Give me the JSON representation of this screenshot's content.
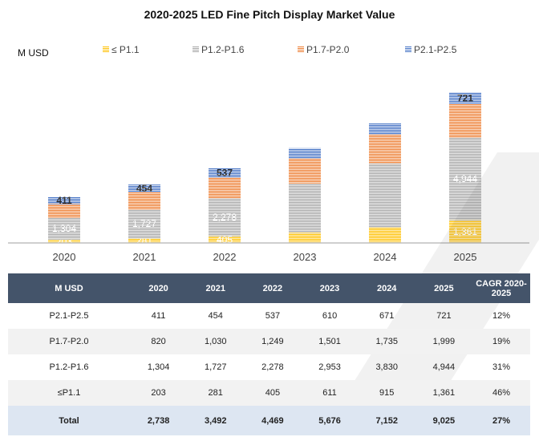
{
  "title": "2020-2025 LED Fine Pitch Display Market Value",
  "unit_label": "M USD",
  "colors": {
    "le_p11": "#ffc000",
    "p12_p16": "#a6a6a6",
    "p17_p20": "#ed7d31",
    "p21_p25": "#4472c4",
    "header_bg": "#44546a",
    "total_bg": "#dde6f2"
  },
  "chart_data": {
    "type": "bar",
    "stacked": true,
    "title": "2020-2025 LED Fine Pitch Display Market Value",
    "ylabel": "M USD",
    "xlabel": "",
    "categories": [
      "2020",
      "2021",
      "2022",
      "2023",
      "2024",
      "2025"
    ],
    "ylim": [
      0,
      9100
    ],
    "grid": false,
    "legend_position": "top",
    "series": [
      {
        "key": "le_p11",
        "name": "≤ P1.1",
        "values": [
          203,
          281,
          405,
          611,
          915,
          1361
        ],
        "labels": [
          "203",
          "281",
          "405",
          "",
          "",
          "1,361"
        ]
      },
      {
        "key": "p12_p16",
        "name": "P1.2-P1.6",
        "values": [
          1304,
          1727,
          2278,
          2953,
          3830,
          4944
        ],
        "labels": [
          "1,304",
          "1,727",
          "2,278",
          "",
          "",
          "4,944"
        ]
      },
      {
        "key": "p17_p20",
        "name": "P1.7-P2.0",
        "values": [
          820,
          1030,
          1249,
          1501,
          1735,
          1999
        ],
        "labels": [
          "",
          "",
          "",
          "",
          "",
          ""
        ]
      },
      {
        "key": "p21_p25",
        "name": "P2.1-P2.5",
        "values": [
          411,
          454,
          537,
          610,
          671,
          721
        ],
        "labels": [
          "411",
          "454",
          "537",
          "",
          "",
          "721"
        ]
      }
    ]
  },
  "table": {
    "headers": [
      "M USD",
      "2020",
      "2021",
      "2022",
      "2023",
      "2024",
      "2025",
      "CAGR 2020-2025"
    ],
    "rows": [
      [
        "P2.1-P2.5",
        "411",
        "454",
        "537",
        "610",
        "671",
        "721",
        "12%"
      ],
      [
        "P1.7-P2.0",
        "820",
        "1,030",
        "1,249",
        "1,501",
        "1,735",
        "1,999",
        "19%"
      ],
      [
        "P1.2-P1.6",
        "1,304",
        "1,727",
        "2,278",
        "2,953",
        "3,830",
        "4,944",
        "31%"
      ],
      [
        "≤P1.1",
        "203",
        "281",
        "405",
        "611",
        "915",
        "1,361",
        "46%"
      ]
    ],
    "total": [
      "Total",
      "2,738",
      "3,492",
      "4,469",
      "5,676",
      "7,152",
      "9,025",
      "27%"
    ]
  }
}
